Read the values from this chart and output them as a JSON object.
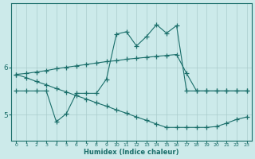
{
  "xlabel": "Humidex (Indice chaleur)",
  "bg_color": "#cceaea",
  "grid_color": "#aacccc",
  "line_color": "#1a6e6a",
  "xlim": [
    -0.5,
    23.5
  ],
  "ylim": [
    4.45,
    7.35
  ],
  "yticks": [
    5,
    6
  ],
  "xticks": [
    0,
    1,
    2,
    3,
    4,
    5,
    6,
    7,
    8,
    9,
    10,
    11,
    12,
    13,
    14,
    15,
    16,
    17,
    18,
    19,
    20,
    21,
    22,
    23
  ],
  "line1_y": [
    5.85,
    5.87,
    5.9,
    5.93,
    5.97,
    6.0,
    6.03,
    6.06,
    6.09,
    6.12,
    6.14,
    6.17,
    6.19,
    6.21,
    6.23,
    6.25,
    6.27,
    5.87,
    5.5,
    5.5,
    5.5,
    5.5,
    5.5,
    5.5
  ],
  "line2_y": [
    5.5,
    5.5,
    5.5,
    5.5,
    4.85,
    5.02,
    5.45,
    5.45,
    5.45,
    5.75,
    6.7,
    6.75,
    6.45,
    6.65,
    6.9,
    6.72,
    6.88,
    5.5,
    5.5,
    5.5,
    5.5,
    5.5,
    5.5,
    5.5
  ],
  "line3_y": [
    5.85,
    5.78,
    5.7,
    5.63,
    5.55,
    5.48,
    5.4,
    5.33,
    5.25,
    5.18,
    5.1,
    5.03,
    4.95,
    4.88,
    4.8,
    4.73,
    4.73,
    4.73,
    4.73,
    4.73,
    4.75,
    4.82,
    4.9,
    4.95
  ]
}
